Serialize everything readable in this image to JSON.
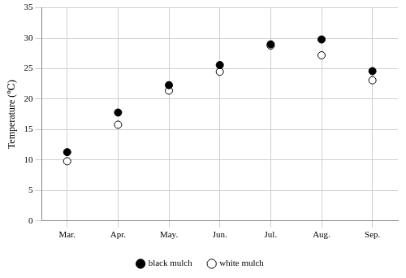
{
  "chart_data": {
    "type": "scatter",
    "y_label": "Temperature (℃)",
    "categories": [
      "Mar.",
      "Apr.",
      "May.",
      "Jun.",
      "Jul.",
      "Aug.",
      "Sep."
    ],
    "series": [
      {
        "name": "black mulch",
        "color": "#000000",
        "marker": "filled_circle",
        "values": [
          11.3,
          17.8,
          22.3,
          25.6,
          29.0,
          29.8,
          24.6
        ]
      },
      {
        "name": "white mulch",
        "color": "#000000",
        "marker": "open_circle",
        "values": [
          9.8,
          15.8,
          21.4,
          24.5,
          28.8,
          27.2,
          23.1
        ]
      }
    ],
    "ylim": [
      0,
      35
    ],
    "yticks": [
      0,
      5,
      10,
      15,
      20,
      25,
      30,
      35
    ],
    "grid": true,
    "legend": "bottom"
  }
}
